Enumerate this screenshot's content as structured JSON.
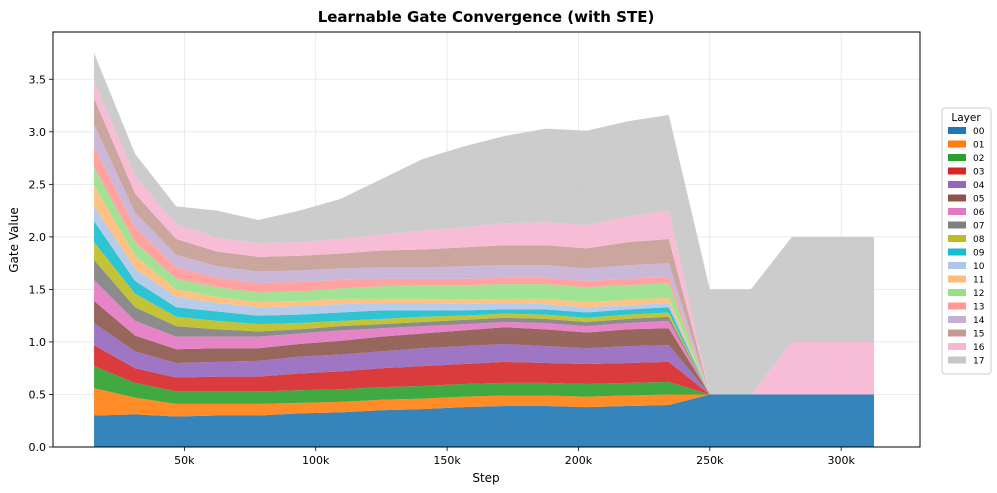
{
  "chart_data": {
    "type": "area",
    "stacked": true,
    "title": "Learnable Gate Convergence (with STE)",
    "xlabel": "Step",
    "ylabel": "Gate Value",
    "xlim": [
      0,
      330000
    ],
    "ylim": [
      0,
      3.95
    ],
    "x_ticks": [
      50000,
      100000,
      150000,
      200000,
      250000,
      300000
    ],
    "x_tick_labels": [
      "50k",
      "100k",
      "150k",
      "200k",
      "250k",
      "300k"
    ],
    "y_ticks": [
      0.0,
      0.5,
      1.0,
      1.5,
      2.0,
      2.5,
      3.0,
      3.5
    ],
    "y_tick_labels": [
      "0.0",
      "0.5",
      "1.0",
      "1.5",
      "2.0",
      "2.5",
      "3.0",
      "3.5"
    ],
    "grid": true,
    "legend_title": "Layer",
    "legend_position": "right",
    "x": [
      15625,
      31250,
      46875,
      62500,
      78125,
      93750,
      109375,
      125000,
      140625,
      156250,
      171875,
      187500,
      203125,
      218750,
      234375,
      250000,
      265625,
      281250,
      296875,
      312500
    ],
    "series": [
      {
        "name": "00",
        "color": "#1f77b4",
        "values": [
          0.3,
          0.31,
          0.29,
          0.3,
          0.3,
          0.32,
          0.33,
          0.35,
          0.36,
          0.38,
          0.39,
          0.39,
          0.38,
          0.39,
          0.4,
          0.5,
          0.5,
          0.5,
          0.5,
          0.5
        ]
      },
      {
        "name": "01",
        "color": "#ff7f0e",
        "values": [
          0.26,
          0.16,
          0.12,
          0.11,
          0.11,
          0.1,
          0.1,
          0.1,
          0.1,
          0.1,
          0.1,
          0.1,
          0.1,
          0.1,
          0.1,
          0.0,
          0.0,
          0.0,
          0.0,
          0.0
        ]
      },
      {
        "name": "02",
        "color": "#2ca02c",
        "values": [
          0.21,
          0.14,
          0.12,
          0.12,
          0.12,
          0.12,
          0.12,
          0.12,
          0.12,
          0.12,
          0.12,
          0.12,
          0.12,
          0.12,
          0.12,
          0.0,
          0.0,
          0.0,
          0.0,
          0.0
        ]
      },
      {
        "name": "03",
        "color": "#d62728",
        "values": [
          0.2,
          0.14,
          0.13,
          0.14,
          0.14,
          0.16,
          0.17,
          0.18,
          0.19,
          0.19,
          0.2,
          0.19,
          0.19,
          0.19,
          0.19,
          0.0,
          0.0,
          0.0,
          0.0,
          0.0
        ]
      },
      {
        "name": "04",
        "color": "#9467bd",
        "values": [
          0.21,
          0.16,
          0.14,
          0.14,
          0.15,
          0.16,
          0.16,
          0.16,
          0.17,
          0.17,
          0.17,
          0.16,
          0.15,
          0.16,
          0.16,
          0.0,
          0.0,
          0.0,
          0.0,
          0.0
        ]
      },
      {
        "name": "05",
        "color": "#8c564b",
        "values": [
          0.21,
          0.15,
          0.13,
          0.13,
          0.12,
          0.12,
          0.13,
          0.14,
          0.14,
          0.15,
          0.16,
          0.16,
          0.15,
          0.16,
          0.16,
          0.0,
          0.0,
          0.0,
          0.0,
          0.0
        ]
      },
      {
        "name": "06",
        "color": "#e377c2",
        "values": [
          0.2,
          0.14,
          0.12,
          0.11,
          0.11,
          0.1,
          0.1,
          0.08,
          0.07,
          0.06,
          0.05,
          0.06,
          0.06,
          0.06,
          0.07,
          0.0,
          0.0,
          0.0,
          0.0,
          0.0
        ]
      },
      {
        "name": "07",
        "color": "#7f7f7f",
        "values": [
          0.19,
          0.13,
          0.1,
          0.07,
          0.05,
          0.04,
          0.04,
          0.04,
          0.04,
          0.04,
          0.04,
          0.04,
          0.04,
          0.04,
          0.04,
          0.0,
          0.0,
          0.0,
          0.0,
          0.0
        ]
      },
      {
        "name": "08",
        "color": "#bcbd22",
        "values": [
          0.17,
          0.13,
          0.09,
          0.08,
          0.07,
          0.06,
          0.05,
          0.05,
          0.05,
          0.04,
          0.04,
          0.04,
          0.04,
          0.04,
          0.04,
          0.0,
          0.0,
          0.0,
          0.0,
          0.0
        ]
      },
      {
        "name": "09",
        "color": "#17becf",
        "values": [
          0.2,
          0.12,
          0.09,
          0.09,
          0.08,
          0.08,
          0.08,
          0.08,
          0.06,
          0.05,
          0.04,
          0.05,
          0.05,
          0.05,
          0.05,
          0.0,
          0.0,
          0.0,
          0.0,
          0.0
        ]
      },
      {
        "name": "10",
        "color": "#aec7e8",
        "values": [
          0.14,
          0.12,
          0.1,
          0.08,
          0.08,
          0.08,
          0.08,
          0.07,
          0.07,
          0.06,
          0.06,
          0.05,
          0.05,
          0.04,
          0.04,
          0.0,
          0.0,
          0.0,
          0.0,
          0.0
        ]
      },
      {
        "name": "11",
        "color": "#ffbb78",
        "values": [
          0.2,
          0.12,
          0.07,
          0.06,
          0.05,
          0.05,
          0.05,
          0.04,
          0.04,
          0.04,
          0.04,
          0.05,
          0.05,
          0.05,
          0.05,
          0.0,
          0.0,
          0.0,
          0.0,
          0.0
        ]
      },
      {
        "name": "12",
        "color": "#98df8a",
        "values": [
          0.17,
          0.13,
          0.1,
          0.09,
          0.09,
          0.09,
          0.1,
          0.12,
          0.13,
          0.14,
          0.14,
          0.14,
          0.14,
          0.14,
          0.14,
          0.0,
          0.0,
          0.0,
          0.0,
          0.0
        ]
      },
      {
        "name": "13",
        "color": "#ff9896",
        "values": [
          0.2,
          0.14,
          0.11,
          0.09,
          0.09,
          0.09,
          0.08,
          0.07,
          0.06,
          0.06,
          0.06,
          0.06,
          0.06,
          0.06,
          0.06,
          0.0,
          0.0,
          0.0,
          0.0,
          0.0
        ]
      },
      {
        "name": "14",
        "color": "#c5b0d5",
        "values": [
          0.21,
          0.14,
          0.12,
          0.11,
          0.11,
          0.11,
          0.11,
          0.11,
          0.11,
          0.12,
          0.12,
          0.12,
          0.12,
          0.13,
          0.13,
          0.0,
          0.0,
          0.0,
          0.0,
          0.0
        ]
      },
      {
        "name": "15",
        "color": "#c49c94",
        "values": [
          0.25,
          0.18,
          0.15,
          0.14,
          0.14,
          0.14,
          0.14,
          0.16,
          0.17,
          0.18,
          0.19,
          0.19,
          0.19,
          0.22,
          0.23,
          0.0,
          0.0,
          0.0,
          0.0,
          0.0
        ]
      },
      {
        "name": "16",
        "color": "#f7b6d2",
        "values": [
          0.16,
          0.17,
          0.14,
          0.13,
          0.13,
          0.13,
          0.14,
          0.15,
          0.18,
          0.19,
          0.21,
          0.22,
          0.22,
          0.24,
          0.27,
          0.0,
          0.0,
          0.5,
          0.5,
          0.5
        ]
      },
      {
        "name": "17",
        "color": "#c7c7c7",
        "values": [
          0.27,
          0.21,
          0.17,
          0.26,
          0.22,
          0.3,
          0.38,
          0.53,
          0.68,
          0.77,
          0.83,
          0.89,
          0.9,
          0.91,
          0.91,
          1.0,
          1.0,
          1.0,
          1.0,
          1.0
        ]
      }
    ]
  }
}
